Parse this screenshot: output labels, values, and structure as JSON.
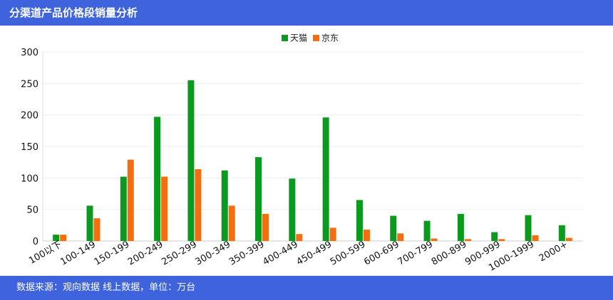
{
  "header": {
    "title": "分渠道产品价格段销量分析"
  },
  "footer": {
    "source": "数据来源：观向数据 线上数据，单位：万台"
  },
  "chart_data": {
    "type": "bar",
    "categories": [
      "100以下",
      "100-149",
      "150-199",
      "200-249",
      "250-299",
      "300-349",
      "350-399",
      "400-449",
      "450-499",
      "500-599",
      "600-699",
      "700-799",
      "800-899",
      "900-999",
      "1000-1999",
      "2000+"
    ],
    "series": [
      {
        "name": "天猫",
        "color": "#0A9B1E",
        "values": [
          10,
          56,
          102,
          197,
          255,
          112,
          133,
          99,
          196,
          65,
          40,
          32,
          43,
          14,
          41,
          25
        ]
      },
      {
        "name": "京东",
        "color": "#F46E0F",
        "values": [
          10,
          36,
          129,
          102,
          114,
          56,
          43,
          11,
          21,
          18,
          12,
          4,
          3,
          3,
          9,
          5
        ]
      }
    ],
    "title": "",
    "xlabel": "",
    "ylabel": "",
    "ylim": [
      0,
      300
    ],
    "yticks": [
      0,
      50,
      100,
      150,
      200,
      250,
      300
    ],
    "grid": true,
    "legend": "top-center"
  }
}
